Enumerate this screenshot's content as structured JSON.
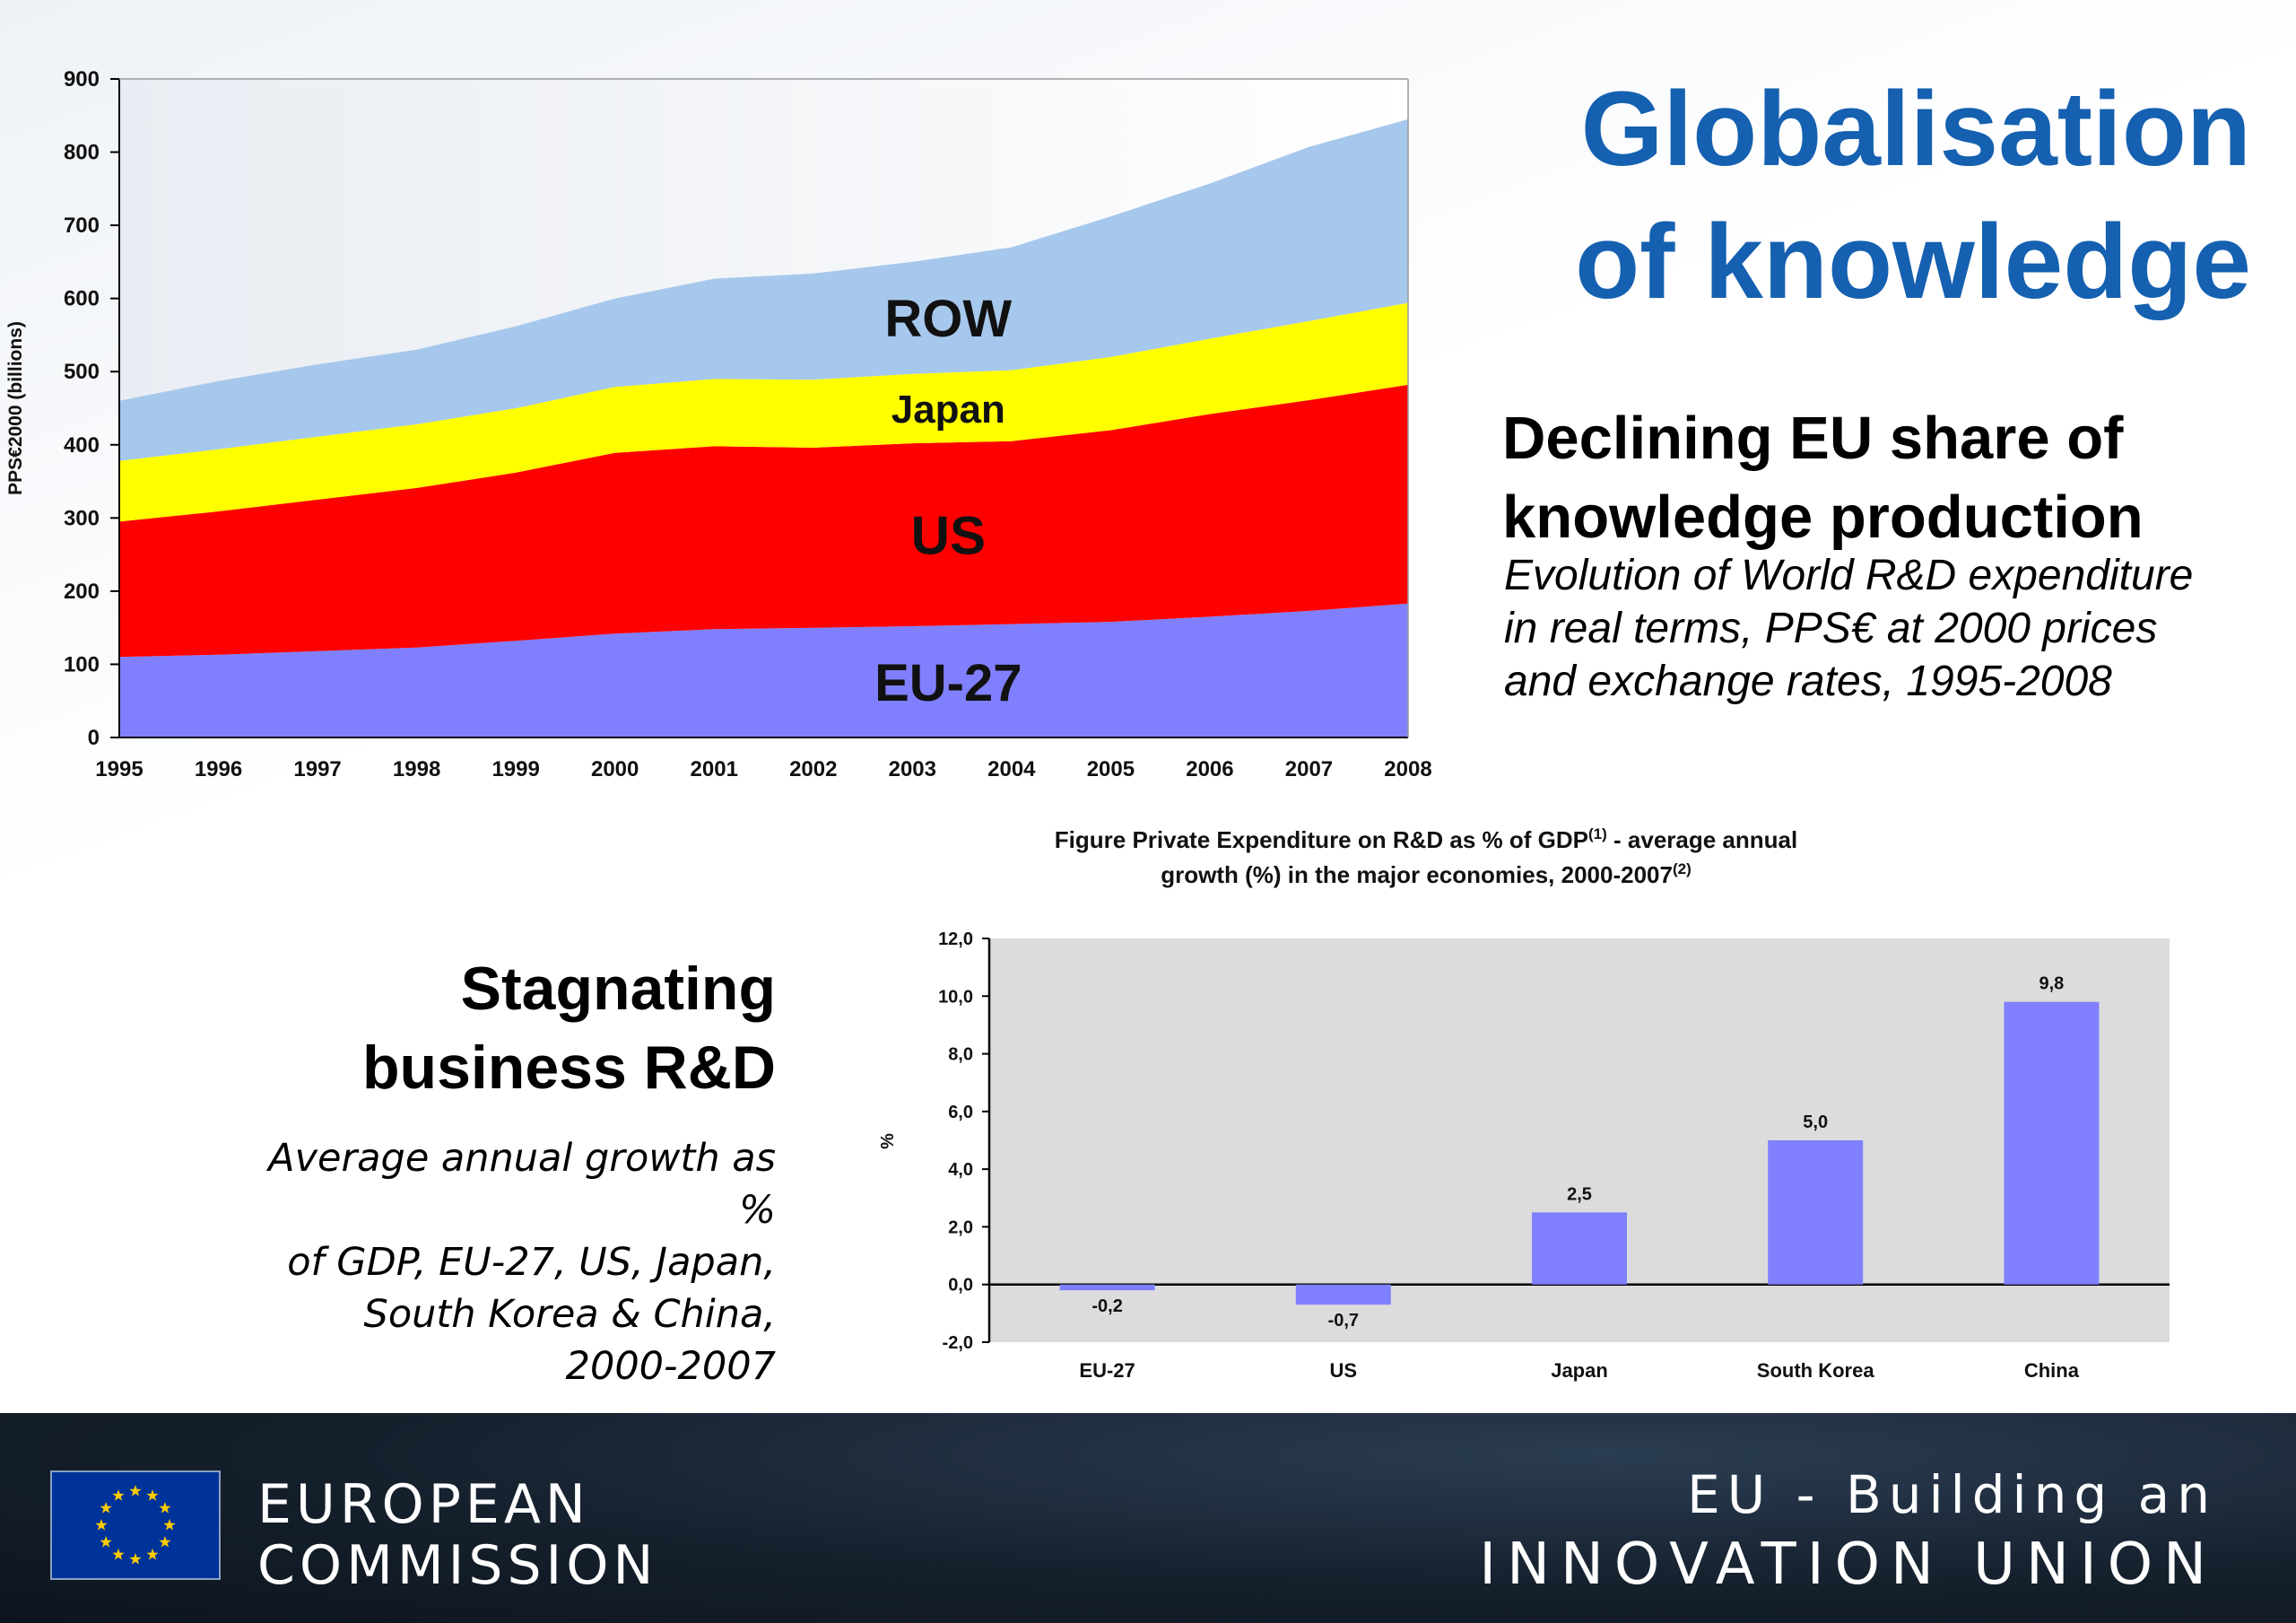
{
  "title": {
    "line1": "Globalisation",
    "line2": "of knowledge"
  },
  "right_heading": {
    "line1": "Declining EU share of",
    "line2": "knowledge production"
  },
  "right_description": {
    "line1": "Evolution of World R&D expenditure",
    "line2": "in real terms, PPS€ at 2000 prices",
    "line3": "and exchange rates, 1995-2008"
  },
  "left_heading": {
    "line1": "Stagnating",
    "line2": "business R&D"
  },
  "left_description": {
    "line1": "Average annual growth as %",
    "line2": "of GDP, EU-27, US, Japan,",
    "line3": "South Korea & China,",
    "line4": "2000-2007"
  },
  "footer": {
    "org_line1": "EUROPEAN",
    "org_line2": "COMMISSION",
    "tagline_line1": "EU - Building an",
    "tagline_line2": "INNOVATION UNION"
  },
  "colors": {
    "title_blue": "#1560b0",
    "eu27": "#8080ff",
    "us": "#ff0000",
    "japan": "#ffff00",
    "row": "#a6c8ec",
    "bar": "#8080ff",
    "bar_plot_bg": "#dcdcdc"
  },
  "chart_data": [
    {
      "type": "area",
      "stacked": true,
      "ylabel": "PPS€2000 (billions)",
      "xlabel": "",
      "ylim": [
        0,
        900
      ],
      "yticks": [
        0,
        100,
        200,
        300,
        400,
        500,
        600,
        700,
        800,
        900
      ],
      "grid": false,
      "x": [
        "1995",
        "1996",
        "1997",
        "1998",
        "1999",
        "2000",
        "2001",
        "2002",
        "2003",
        "2004",
        "2005",
        "2006",
        "2007",
        "2008"
      ],
      "series": [
        {
          "name": "EU-27",
          "color": "#8080ff",
          "values": [
            110,
            113,
            118,
            123,
            132,
            142,
            148,
            150,
            152,
            155,
            158,
            165,
            173,
            183
          ]
        },
        {
          "name": "US",
          "color": "#ff0000",
          "values": [
            185,
            196,
            207,
            218,
            230,
            247,
            250,
            246,
            250,
            250,
            262,
            277,
            288,
            299
          ]
        },
        {
          "name": "Japan",
          "color": "#ffff00",
          "values": [
            83,
            85,
            86,
            87,
            88,
            90,
            92,
            93,
            95,
            97,
            100,
            103,
            108,
            112
          ]
        },
        {
          "name": "ROW",
          "color": "#a6c8ec",
          "values": [
            82,
            93,
            99,
            102,
            112,
            121,
            137,
            145,
            153,
            168,
            192,
            212,
            238,
            251
          ]
        }
      ]
    },
    {
      "type": "bar",
      "title": "Figure  Private Expenditure on R&D as % of GDP",
      "title_sup1": "(1)",
      "title_tail": " - average annual",
      "title_line2": "growth (%) in the major economies, 2000-2007",
      "title_sup2": "(2)",
      "ylabel": "%",
      "xlabel": "",
      "ylim": [
        -2,
        12
      ],
      "yticks": [
        "-2,0",
        "0,0",
        "2,0",
        "4,0",
        "6,0",
        "8,0",
        "10,0",
        "12,0"
      ],
      "ytick_values": [
        -2,
        0,
        2,
        4,
        6,
        8,
        10,
        12
      ],
      "grid": false,
      "categories": [
        "EU-27",
        "US",
        "Japan",
        "South Korea",
        "China"
      ],
      "values": [
        -0.2,
        -0.7,
        2.5,
        5.0,
        9.8
      ],
      "value_labels": [
        "-0,2",
        "-0,7",
        "2,5",
        "5,0",
        "9,8"
      ]
    }
  ]
}
